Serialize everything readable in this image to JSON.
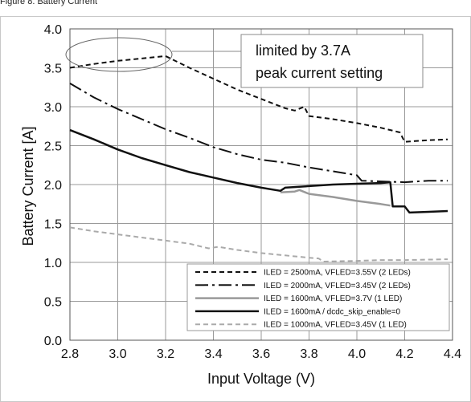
{
  "header_text": "Figure 8. Battery Current",
  "chart_data": {
    "type": "line",
    "title": "",
    "xlabel": "Input Voltage (V)",
    "ylabel": "Battery Current [A]",
    "xlim": [
      2.8,
      4.4
    ],
    "ylim": [
      0.0,
      4.0
    ],
    "x_ticks": [
      "2.8",
      "3.0",
      "3.2",
      "3.4",
      "3.6",
      "3.8",
      "4.0",
      "4.2",
      "4.4"
    ],
    "y_ticks": [
      "0.0",
      "0.5",
      "1.0",
      "1.5",
      "2.0",
      "2.5",
      "3.0",
      "3.5",
      "4.0"
    ],
    "grid": true,
    "legend_position": "bottom-right",
    "annotation": {
      "lines": [
        "limited by 3.7A",
        "peak current setting"
      ]
    },
    "series": [
      {
        "name": "ILED = 2500mA, VFLED=3.55V (2 LEDs)",
        "color": "#111111",
        "dash": "6,4",
        "width": 2,
        "points": [
          [
            2.8,
            3.5
          ],
          [
            2.9,
            3.55
          ],
          [
            3.0,
            3.59
          ],
          [
            3.1,
            3.62
          ],
          [
            3.2,
            3.65
          ],
          [
            3.3,
            3.5
          ],
          [
            3.4,
            3.36
          ],
          [
            3.5,
            3.22
          ],
          [
            3.6,
            3.1
          ],
          [
            3.7,
            2.98
          ],
          [
            3.74,
            2.95
          ],
          [
            3.78,
            3.0
          ],
          [
            3.8,
            2.88
          ],
          [
            3.9,
            2.84
          ],
          [
            4.0,
            2.79
          ],
          [
            4.1,
            2.73
          ],
          [
            4.18,
            2.67
          ],
          [
            4.2,
            2.55
          ],
          [
            4.3,
            2.57
          ],
          [
            4.38,
            2.58
          ]
        ]
      },
      {
        "name": "ILED = 2000mA, VFLED=3.45V (2 LEDs)",
        "color": "#111111",
        "dash": "16,5,3,5",
        "width": 2,
        "points": [
          [
            2.8,
            3.3
          ],
          [
            2.9,
            3.12
          ],
          [
            3.0,
            2.97
          ],
          [
            3.1,
            2.84
          ],
          [
            3.2,
            2.71
          ],
          [
            3.3,
            2.6
          ],
          [
            3.4,
            2.48
          ],
          [
            3.5,
            2.39
          ],
          [
            3.6,
            2.32
          ],
          [
            3.7,
            2.28
          ],
          [
            3.8,
            2.22
          ],
          [
            3.9,
            2.17
          ],
          [
            4.0,
            2.12
          ],
          [
            4.02,
            2.05
          ],
          [
            4.2,
            2.03
          ],
          [
            4.3,
            2.05
          ],
          [
            4.38,
            2.05
          ]
        ]
      },
      {
        "name": "ILED = 1600mA, VFLED=3.7V (1 LED)",
        "color": "#999999",
        "dash": "",
        "width": 2.5,
        "points": [
          [
            3.68,
            1.9
          ],
          [
            3.74,
            1.91
          ],
          [
            3.76,
            1.93
          ],
          [
            3.8,
            1.88
          ],
          [
            3.9,
            1.84
          ],
          [
            4.0,
            1.79
          ],
          [
            4.1,
            1.75
          ],
          [
            4.14,
            1.73
          ]
        ]
      },
      {
        "name": "ILED = 1600mA / dcdc_skip_enable=0",
        "color": "#111111",
        "dash": "",
        "width": 2.5,
        "points": [
          [
            2.8,
            2.7
          ],
          [
            2.9,
            2.58
          ],
          [
            3.0,
            2.45
          ],
          [
            3.1,
            2.34
          ],
          [
            3.2,
            2.25
          ],
          [
            3.3,
            2.16
          ],
          [
            3.4,
            2.09
          ],
          [
            3.5,
            2.02
          ],
          [
            3.6,
            1.96
          ],
          [
            3.68,
            1.92
          ],
          [
            3.7,
            1.96
          ],
          [
            3.8,
            1.98
          ],
          [
            3.9,
            2.0
          ],
          [
            4.0,
            2.01
          ],
          [
            4.1,
            2.02
          ],
          [
            4.14,
            2.03
          ],
          [
            4.15,
            1.72
          ],
          [
            4.2,
            1.72
          ],
          [
            4.22,
            1.64
          ],
          [
            4.3,
            1.65
          ],
          [
            4.38,
            1.66
          ]
        ]
      },
      {
        "name": "ILED = 1000mA, VFLED=3.45V (1 LED)",
        "color": "#aaaaaa",
        "dash": "6,4",
        "width": 2,
        "points": [
          [
            2.8,
            1.45
          ],
          [
            2.9,
            1.4
          ],
          [
            3.0,
            1.36
          ],
          [
            3.1,
            1.32
          ],
          [
            3.2,
            1.28
          ],
          [
            3.3,
            1.24
          ],
          [
            3.38,
            1.18
          ],
          [
            3.42,
            1.2
          ],
          [
            3.5,
            1.16
          ],
          [
            3.6,
            1.12
          ],
          [
            3.7,
            1.09
          ],
          [
            3.8,
            1.06
          ],
          [
            3.84,
            1.05
          ],
          [
            3.86,
            1.01
          ],
          [
            4.0,
            1.02
          ],
          [
            4.1,
            1.03
          ],
          [
            4.2,
            1.03
          ],
          [
            4.38,
            1.04
          ]
        ]
      }
    ]
  }
}
